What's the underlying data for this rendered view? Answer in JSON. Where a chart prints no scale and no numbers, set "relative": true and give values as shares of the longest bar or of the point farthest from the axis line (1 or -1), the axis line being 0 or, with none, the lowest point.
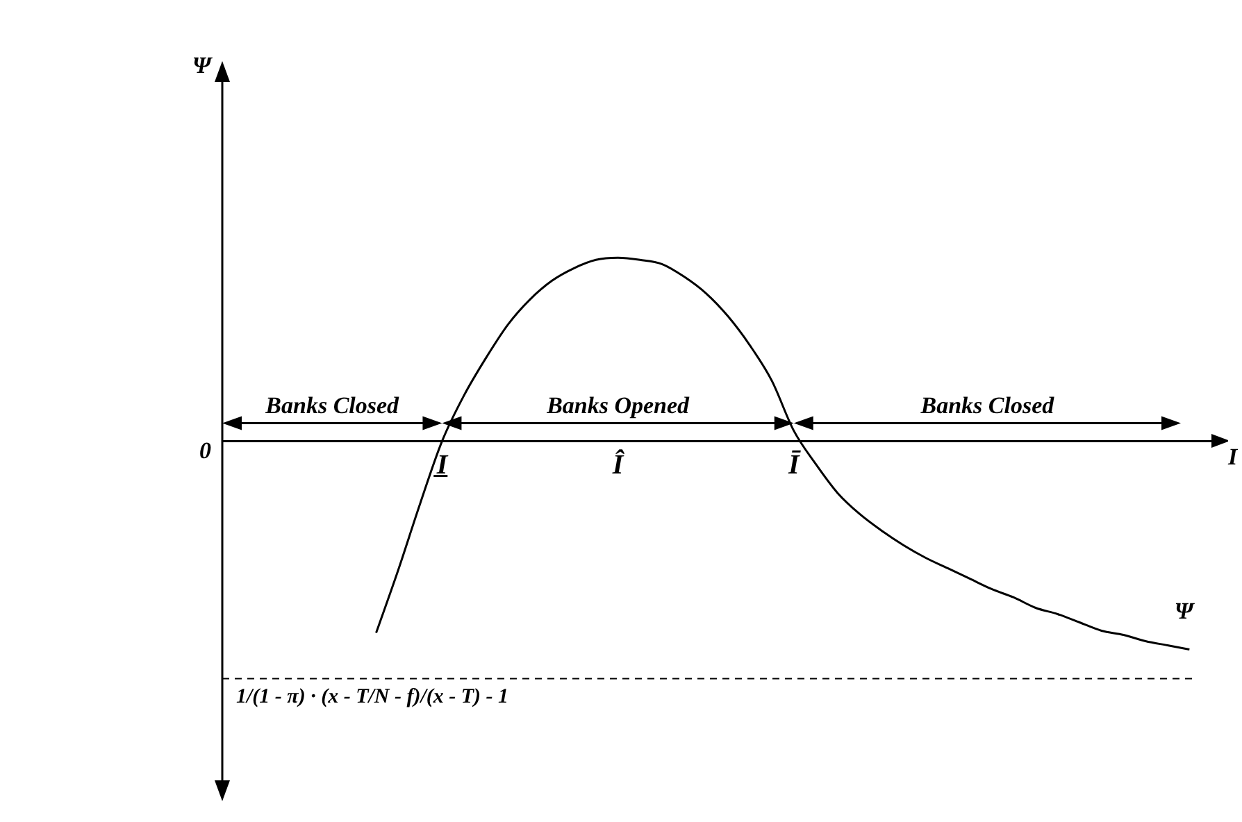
{
  "chart_data": {
    "type": "line",
    "relative": true,
    "xlabel": "I",
    "categories": [
      null,
      null,
      null,
      null,
      null,
      null,
      null,
      null,
      null,
      null,
      "I̲",
      null,
      null,
      null,
      null,
      null,
      null,
      null,
      "Î",
      null,
      null,
      null,
      null,
      null,
      null,
      null,
      "Ī",
      null,
      null,
      null,
      null,
      null,
      null,
      null,
      null,
      null,
      null,
      null,
      null,
      null,
      null,
      null,
      null,
      null,
      null,
      null
    ],
    "series": [
      {
        "name": "Ψ",
        "color": "#000000",
        "values": [
          null,
          null,
          null,
          null,
          null,
          null,
          null,
          -0.92,
          -0.62,
          -0.3,
          0,
          0.22,
          0.4,
          0.56,
          0.68,
          0.77,
          0.83,
          0.87,
          0.88,
          0.87,
          0.85,
          0.79,
          0.71,
          0.6,
          0.46,
          0.29,
          0.05,
          -0.11,
          -0.25,
          -0.35,
          -0.43,
          -0.5,
          -0.56,
          -0.61,
          -0.66,
          -0.71,
          -0.75,
          -0.8,
          -0.83,
          -0.87,
          -0.91,
          -0.93,
          -0.96,
          -0.98,
          -1,
          null
        ]
      }
    ],
    "ref_lines": [
      {
        "axis": "y",
        "value": -1.14,
        "label": "1/(1 - π) · (x - T/N - f)/(x - T) - 1",
        "color": "#000000",
        "line_style": "dashed"
      }
    ],
    "annotations": [
      "Banks Closed",
      "Banks Opened",
      "Banks Closed",
      "0",
      "Ψ"
    ],
    "grid": false,
    "legend": false,
    "marker": "none",
    "line_style": "solid"
  }
}
